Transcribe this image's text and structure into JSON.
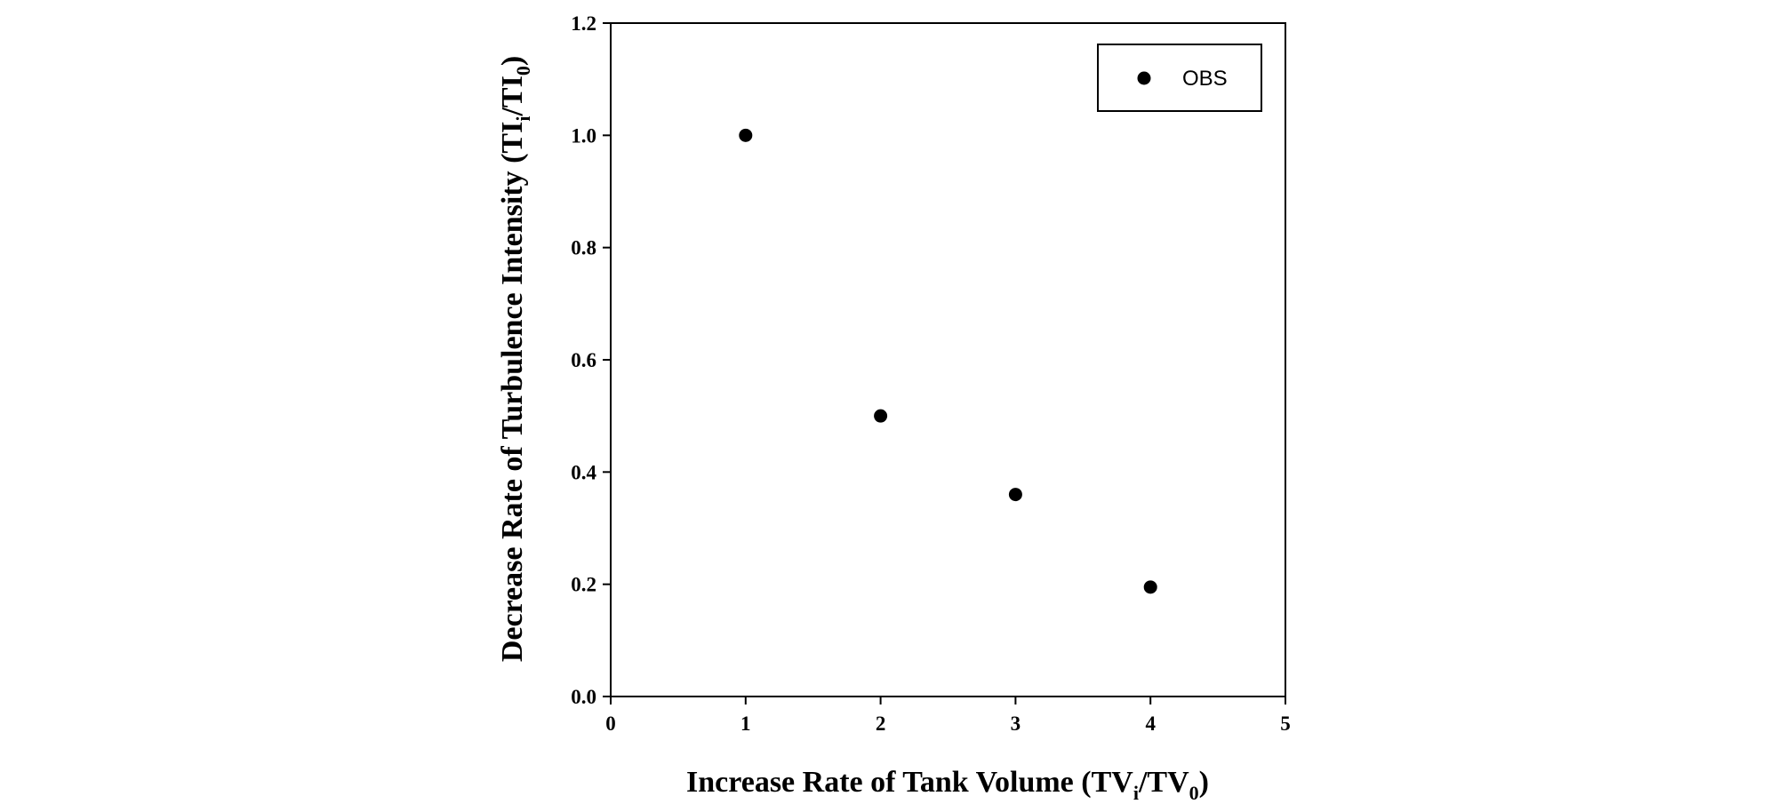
{
  "chart_data": {
    "type": "scatter",
    "x": [
      1,
      2,
      3,
      4
    ],
    "series": [
      {
        "name": "OBS",
        "values": [
          1.0,
          0.5,
          0.36,
          0.195
        ]
      }
    ],
    "xlim": [
      0,
      5
    ],
    "ylim": [
      0,
      1.2
    ],
    "xticks": [
      "0",
      "1",
      "2",
      "3",
      "4",
      "5"
    ],
    "yticks": [
      "0.0",
      "0.2",
      "0.4",
      "0.6",
      "0.8",
      "1.0",
      "1.2"
    ],
    "xlabel": {
      "main": "Increase Rate of Tank Volume (TV",
      "sub1": "i",
      "mid": "/TV",
      "sub2": "0",
      "end": ")"
    },
    "ylabel": {
      "main": "Decrease Rate of Turbulence Intensity (TI",
      "sub1": "i",
      "mid": "/TI",
      "sub2": "0",
      "end": ")"
    },
    "legend": {
      "position": "top-right",
      "entries": [
        "OBS"
      ]
    },
    "grid": false,
    "marker_color": "#000000"
  }
}
